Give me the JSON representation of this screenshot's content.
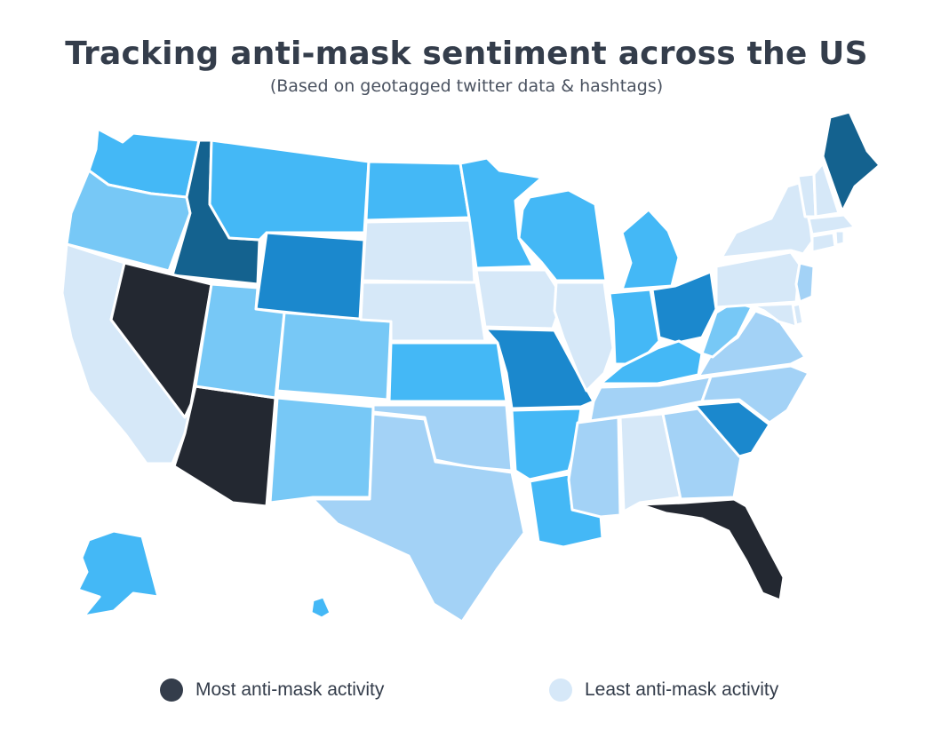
{
  "title": "Tracking anti-mask sentiment across the US",
  "subtitle": "(Based on geotagged twitter data & hashtags)",
  "palette": {
    "l1": "#d6e8f8",
    "l2": "#a3d2f6",
    "l3": "#77c8f6",
    "l4": "#44b8f6",
    "l5": "#1b88cd",
    "l6": "#14628f",
    "l7": "#232831"
  },
  "legend": {
    "most": {
      "label": "Most anti-mask activity",
      "color": "#343d4b"
    },
    "least": {
      "label": "Least anti-mask activity",
      "color": "#d6e8f8"
    }
  },
  "states": {
    "WA": "l4",
    "OR": "l3",
    "CA": "l1",
    "ID": "l6",
    "NV": "l7",
    "AZ": "l7",
    "MT": "l4",
    "WY": "l5",
    "UT": "l3",
    "CO": "l3",
    "NM": "l3",
    "ND": "l4",
    "SD": "l1",
    "NE": "l1",
    "KS": "l4",
    "OK": "l2",
    "TX": "l2",
    "MN": "l4",
    "IA": "l1",
    "MO": "l5",
    "AR": "l4",
    "LA": "l4",
    "WI": "l4",
    "IL": "l1",
    "MI": "l4",
    "IN": "l4",
    "OH": "l5",
    "KY": "l4",
    "TN": "l2",
    "MS": "l2",
    "AL": "l1",
    "GA": "l2",
    "FL": "l7",
    "SC": "l5",
    "NC": "l2",
    "VA": "l2",
    "WV": "l3",
    "PA": "l1",
    "NY": "l1",
    "NJ": "l2",
    "DE": "l1",
    "MD": "l1",
    "CT": "l1",
    "RI": "l1",
    "MA": "l1",
    "VT": "l1",
    "NH": "l1",
    "ME": "l6",
    "AK": "l4",
    "HI": "l4"
  }
}
